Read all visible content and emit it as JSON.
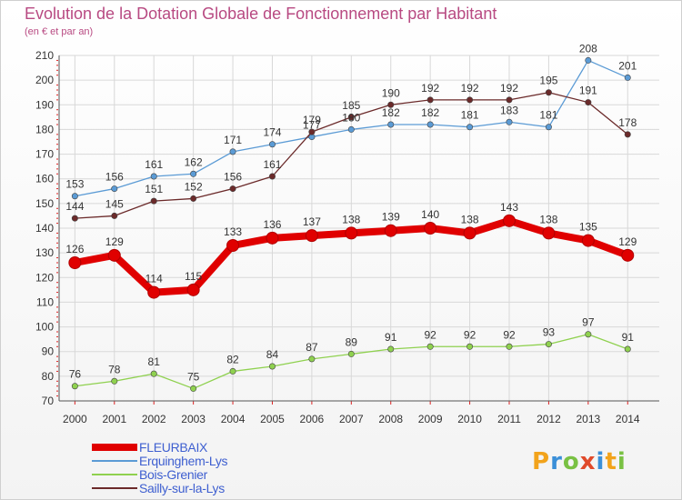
{
  "chart_data": {
    "type": "line",
    "title": "Evolution de la Dotation Globale de Fonctionnement par Habitant",
    "subtitle": "(en € et par an)",
    "xlabel": "",
    "ylabel": "",
    "ylim": [
      70,
      210
    ],
    "yticks": [
      70,
      80,
      90,
      100,
      110,
      120,
      130,
      140,
      150,
      160,
      170,
      180,
      190,
      200,
      210
    ],
    "categories": [
      "2000",
      "2001",
      "2002",
      "2003",
      "2004",
      "2005",
      "2006",
      "2007",
      "2008",
      "2009",
      "2010",
      "2011",
      "2012",
      "2013",
      "2014"
    ],
    "series": [
      {
        "name": "FLEURBAIX",
        "color": "#e00000",
        "values": [
          126,
          129,
          114,
          115,
          133,
          136,
          137,
          138,
          139,
          140,
          138,
          143,
          138,
          135,
          129
        ]
      },
      {
        "name": "Erquinghem-Lys",
        "color": "#5b9bd5",
        "values": [
          153,
          156,
          161,
          162,
          171,
          174,
          177,
          180,
          182,
          182,
          181,
          183,
          181,
          208,
          201
        ]
      },
      {
        "name": "Bois-Grenier",
        "color": "#8fd14f",
        "values": [
          76,
          78,
          81,
          75,
          82,
          84,
          87,
          89,
          91,
          92,
          92,
          92,
          93,
          97,
          91
        ]
      },
      {
        "name": "Sailly-sur-la-Lys",
        "color": "#6b2a2a",
        "values": [
          144,
          145,
          151,
          152,
          156,
          161,
          179,
          185,
          190,
          192,
          192,
          192,
          195,
          191,
          178
        ]
      }
    ],
    "grid": true,
    "legend_position": "bottom-left"
  },
  "logo": {
    "letters": [
      "P",
      "r",
      "o",
      "x",
      "i",
      "t",
      "i"
    ],
    "colors": [
      "#f2a31b",
      "#3a8fd8",
      "#79c143",
      "#e04a2a",
      "#3a8fd8",
      "#f2a31b",
      "#79c143"
    ]
  }
}
